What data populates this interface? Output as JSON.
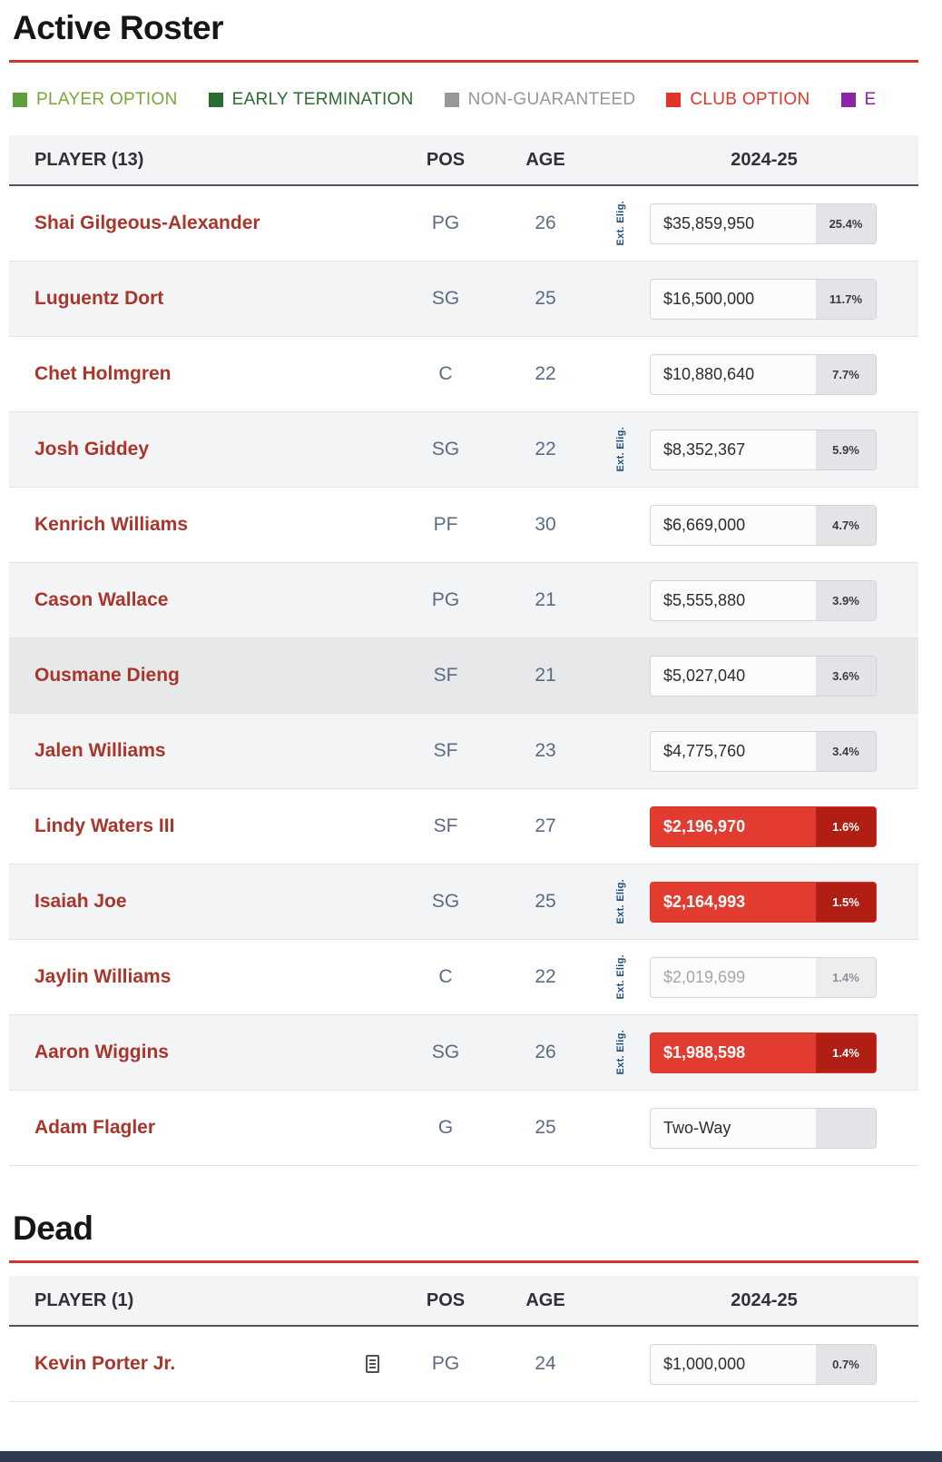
{
  "legend": {
    "items": [
      {
        "label": "PLAYER OPTION",
        "color": "#5f9e3e",
        "text": "#79a53c"
      },
      {
        "label": "EARLY TERMINATION",
        "color": "#2e6b31",
        "text": "#2e6b31"
      },
      {
        "label": "NON-GUARANTEED",
        "color": "#97979c",
        "text": "#97979c"
      },
      {
        "label": "CLUB OPTION",
        "color": "#e0352b",
        "text": "#e0352b"
      },
      {
        "label": "E",
        "color": "#8e24aa",
        "text": "#8e24aa"
      }
    ]
  },
  "active": {
    "title": "Active Roster",
    "header": {
      "player": "PLAYER (13)",
      "pos": "POS",
      "age": "AGE",
      "season": "2024-25"
    },
    "rows": [
      {
        "name": "Shai Gilgeous-Alexander",
        "pos": "PG",
        "age": "26",
        "ext": "Ext. Elig.",
        "salary": "$35,859,950",
        "pct": "25.4%",
        "variant": "default"
      },
      {
        "name": "Luguentz Dort",
        "pos": "SG",
        "age": "25",
        "ext": "",
        "salary": "$16,500,000",
        "pct": "11.7%",
        "variant": "default"
      },
      {
        "name": "Chet Holmgren",
        "pos": "C",
        "age": "22",
        "ext": "",
        "salary": "$10,880,640",
        "pct": "7.7%",
        "variant": "default"
      },
      {
        "name": "Josh Giddey",
        "pos": "SG",
        "age": "22",
        "ext": "Ext. Elig.",
        "salary": "$8,352,367",
        "pct": "5.9%",
        "variant": "default"
      },
      {
        "name": "Kenrich Williams",
        "pos": "PF",
        "age": "30",
        "ext": "",
        "salary": "$6,669,000",
        "pct": "4.7%",
        "variant": "default"
      },
      {
        "name": "Cason Wallace",
        "pos": "PG",
        "age": "21",
        "ext": "",
        "salary": "$5,555,880",
        "pct": "3.9%",
        "variant": "default"
      },
      {
        "name": "Ousmane Dieng",
        "pos": "SF",
        "age": "21",
        "ext": "",
        "salary": "$5,027,040",
        "pct": "3.6%",
        "variant": "default",
        "hover": true
      },
      {
        "name": "Jalen Williams",
        "pos": "SF",
        "age": "23",
        "ext": "",
        "salary": "$4,775,760",
        "pct": "3.4%",
        "variant": "default"
      },
      {
        "name": "Lindy Waters III",
        "pos": "SF",
        "age": "27",
        "ext": "",
        "salary": "$2,196,970",
        "pct": "1.6%",
        "variant": "club"
      },
      {
        "name": "Isaiah Joe",
        "pos": "SG",
        "age": "25",
        "ext": "Ext. Elig.",
        "salary": "$2,164,993",
        "pct": "1.5%",
        "variant": "club"
      },
      {
        "name": "Jaylin Williams",
        "pos": "C",
        "age": "22",
        "ext": "Ext. Elig.",
        "salary": "$2,019,699",
        "pct": "1.4%",
        "variant": "nong"
      },
      {
        "name": "Aaron Wiggins",
        "pos": "SG",
        "age": "26",
        "ext": "Ext. Elig.",
        "salary": "$1,988,598",
        "pct": "1.4%",
        "variant": "club"
      },
      {
        "name": "Adam Flagler",
        "pos": "G",
        "age": "25",
        "ext": "",
        "salary": "Two-Way",
        "pct": "",
        "variant": "default"
      }
    ]
  },
  "dead": {
    "title": "Dead",
    "header": {
      "player": "PLAYER (1)",
      "pos": "POS",
      "age": "AGE",
      "season": "2024-25"
    },
    "rows": [
      {
        "name": "Kevin Porter Jr.",
        "pos": "PG",
        "age": "24",
        "ext": "",
        "salary": "$1,000,000",
        "pct": "0.7%",
        "variant": "default",
        "icon": "contract-notes-icon"
      }
    ]
  }
}
